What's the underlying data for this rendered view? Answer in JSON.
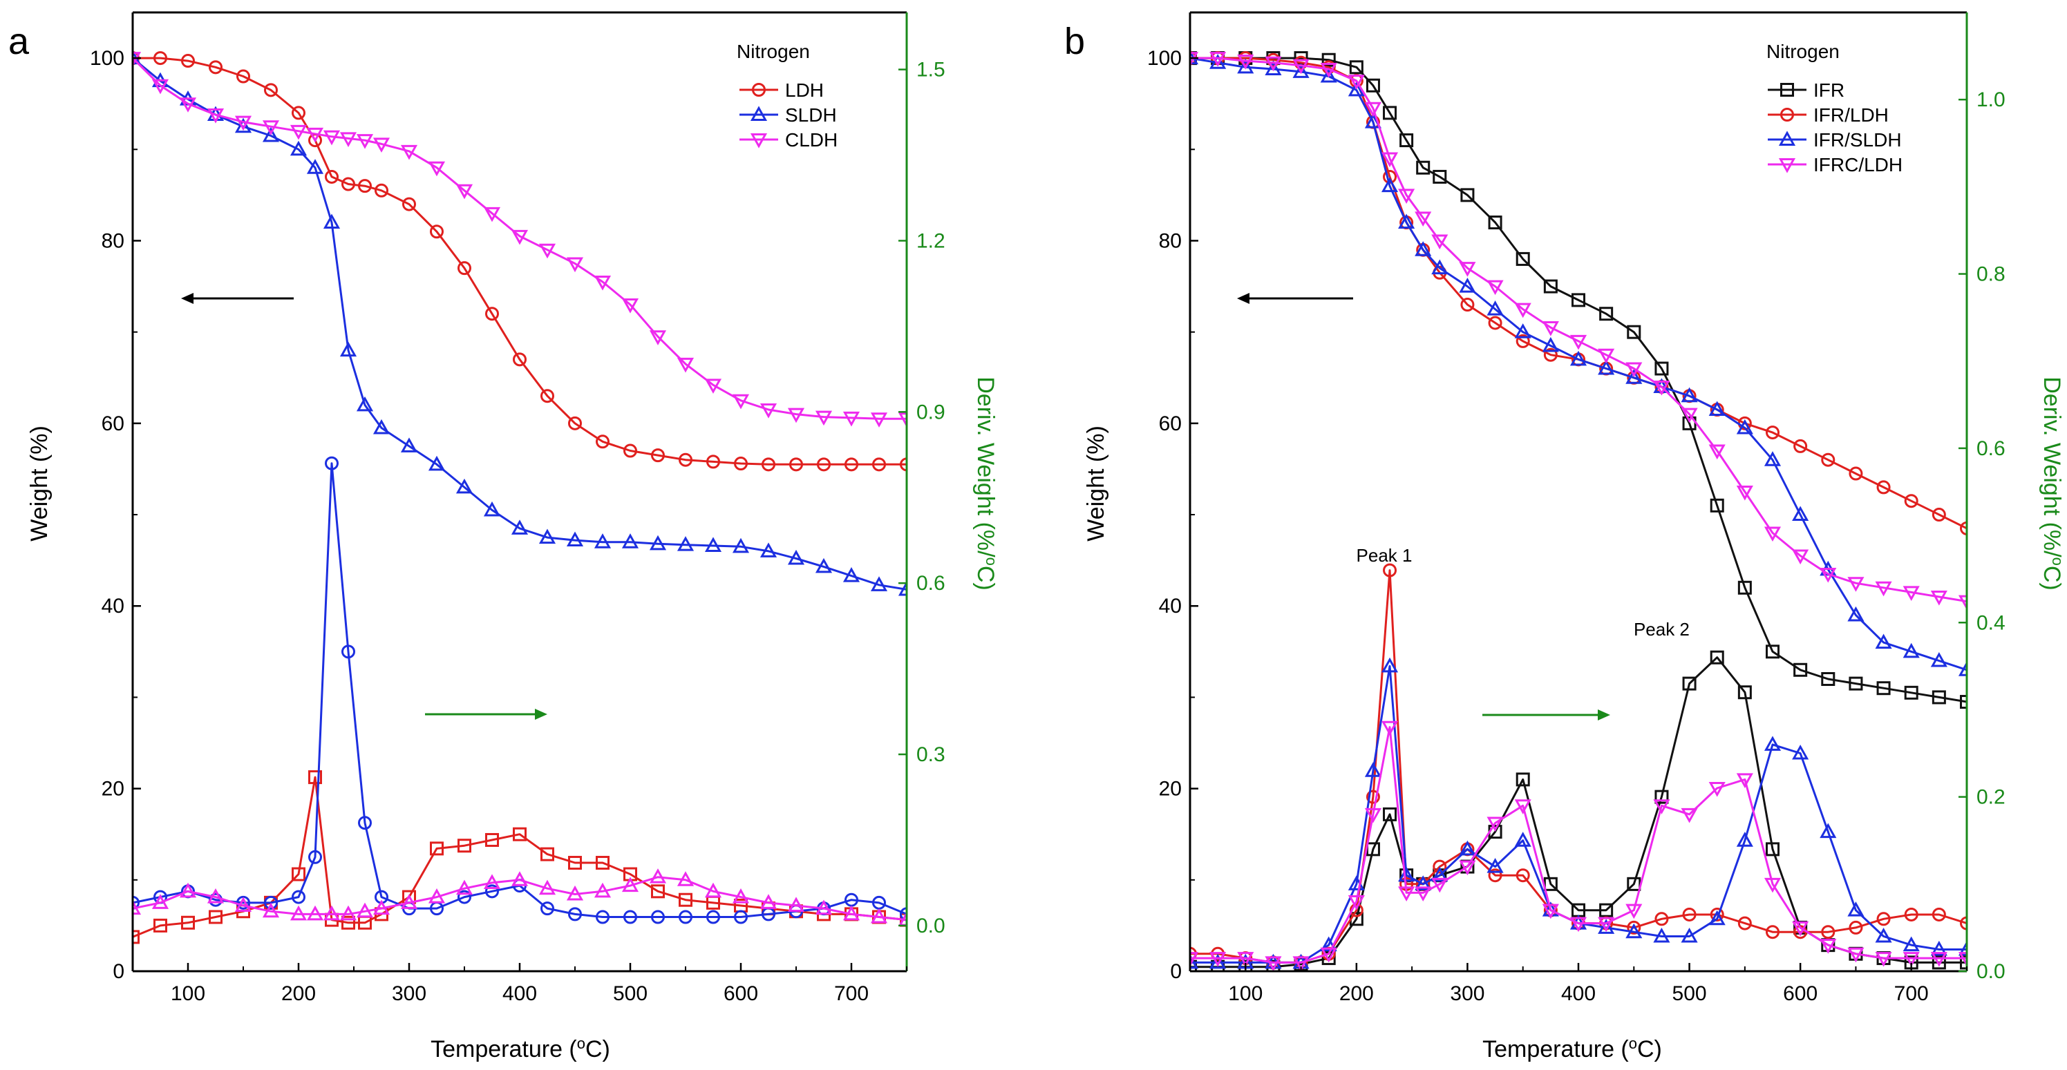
{
  "colors": {
    "LDH": "#e0201e",
    "SLDH": "#1c2fe0",
    "CLDH": "#ee2aee",
    "IFR": "#111111",
    "IFR/LDH": "#e0201e",
    "IFR/SLDH": "#1c2fe0",
    "IFRC/LDH": "#ee2aee",
    "deriv_axis": "#1a8a1a"
  },
  "chart_data": [
    {
      "panel": "a",
      "type": "line",
      "legend_title": "Nitrogen",
      "legend_position": "top-right",
      "xlabel": "Temperature (°C)",
      "ylabel": "Weight (%)",
      "y2label": "Deriv. Weight (%/°C)",
      "xlim": [
        50,
        750
      ],
      "ylim": [
        0,
        105
      ],
      "y2lim": [
        -0.08,
        1.6
      ],
      "xticks": [
        100,
        200,
        300,
        400,
        500,
        600,
        700
      ],
      "yticks": [
        0,
        20,
        40,
        60,
        80,
        100
      ],
      "y2ticks": [
        0.0,
        0.3,
        0.6,
        0.9,
        1.2,
        1.5
      ],
      "y2tick_labels": [
        "0.0",
        "0.3",
        "0.6",
        "0.9",
        "1.2",
        "1.5"
      ],
      "x": [
        50,
        75,
        100,
        125,
        150,
        175,
        200,
        215,
        230,
        245,
        260,
        275,
        300,
        325,
        350,
        375,
        400,
        425,
        450,
        475,
        500,
        525,
        550,
        575,
        600,
        625,
        650,
        675,
        700,
        725,
        750
      ],
      "series": [
        {
          "name": "LDH",
          "axis": "weight",
          "marker": "circle",
          "values": [
            100,
            100,
            99.7,
            99,
            98,
            96.5,
            94,
            91,
            87,
            86.2,
            86,
            85.5,
            84,
            81,
            77,
            72,
            67,
            63,
            60,
            58,
            57,
            56.5,
            56,
            55.8,
            55.6,
            55.5,
            55.5,
            55.5,
            55.5,
            55.5,
            55.5
          ]
        },
        {
          "name": "SLDH",
          "axis": "weight",
          "marker": "triangle-up",
          "values": [
            100,
            97.5,
            95.5,
            93.8,
            92.5,
            91.5,
            90,
            88,
            82,
            68,
            62,
            59.5,
            57.5,
            55.5,
            53,
            50.5,
            48.5,
            47.5,
            47.2,
            47,
            47,
            46.8,
            46.7,
            46.6,
            46.5,
            46,
            45.2,
            44.3,
            43.3,
            42.3,
            41.8
          ]
        },
        {
          "name": "CLDH",
          "axis": "weight",
          "marker": "triangle-down",
          "values": [
            100,
            97,
            95,
            93.8,
            93,
            92.5,
            92,
            91.7,
            91.4,
            91.2,
            91,
            90.6,
            89.8,
            88,
            85.5,
            83,
            80.5,
            79,
            77.5,
            75.5,
            73,
            69.5,
            66.5,
            64.2,
            62.5,
            61.5,
            61,
            60.7,
            60.6,
            60.5,
            60.5
          ]
        },
        {
          "name": "LDH-deriv",
          "axis": "deriv",
          "marker": "square",
          "color_key": "LDH",
          "values": [
            -0.02,
            0.0,
            0.005,
            0.015,
            0.025,
            0.04,
            0.09,
            0.26,
            0.01,
            0.005,
            0.005,
            0.02,
            0.05,
            0.135,
            0.14,
            0.15,
            0.16,
            0.125,
            0.11,
            0.11,
            0.09,
            0.06,
            0.045,
            0.04,
            0.035,
            0.03,
            0.025,
            0.02,
            0.02,
            0.015,
            0.01
          ]
        },
        {
          "name": "SLDH-deriv",
          "axis": "deriv",
          "marker": "circle",
          "color_key": "SLDH",
          "values": [
            0.04,
            0.05,
            0.06,
            0.045,
            0.04,
            0.04,
            0.05,
            0.12,
            0.81,
            0.48,
            0.18,
            0.05,
            0.03,
            0.03,
            0.05,
            0.06,
            0.07,
            0.03,
            0.02,
            0.015,
            0.015,
            0.015,
            0.015,
            0.015,
            0.015,
            0.02,
            0.025,
            0.03,
            0.045,
            0.04,
            0.02
          ]
        },
        {
          "name": "CLDH-deriv",
          "axis": "deriv",
          "marker": "triangle-up",
          "color_key": "CLDH",
          "values": [
            0.03,
            0.04,
            0.06,
            0.05,
            0.035,
            0.025,
            0.02,
            0.02,
            0.02,
            0.02,
            0.025,
            0.03,
            0.04,
            0.05,
            0.065,
            0.075,
            0.08,
            0.065,
            0.055,
            0.06,
            0.07,
            0.085,
            0.08,
            0.06,
            0.05,
            0.04,
            0.035,
            0.03,
            0.02,
            0.015,
            0.01
          ]
        }
      ],
      "legend": [
        "LDH",
        "SLDH",
        "CLDH"
      ]
    },
    {
      "panel": "b",
      "type": "line",
      "legend_title": "Nitrogen",
      "legend_position": "top-right",
      "xlabel": "Temperature (°C)",
      "ylabel": "Weight (%)",
      "y2label": "Deriv. Weight (%/°C)",
      "xlim": [
        50,
        750
      ],
      "ylim": [
        0,
        105
      ],
      "y2lim": [
        0,
        1.1
      ],
      "xticks": [
        100,
        200,
        300,
        400,
        500,
        600,
        700
      ],
      "yticks": [
        0,
        20,
        40,
        60,
        80,
        100
      ],
      "y2ticks": [
        0.0,
        0.2,
        0.4,
        0.6,
        0.8,
        1.0
      ],
      "y2tick_labels": [
        "0.0",
        "0.2",
        "0.4",
        "0.6",
        "0.8",
        "1.0"
      ],
      "annotations": [
        {
          "text": "Peak 1",
          "x": 225,
          "y2": 0.47
        },
        {
          "text": "Peak 2",
          "x": 475,
          "y2": 0.385
        }
      ],
      "x": [
        50,
        75,
        100,
        125,
        150,
        175,
        200,
        215,
        230,
        245,
        260,
        275,
        300,
        325,
        350,
        375,
        400,
        425,
        450,
        475,
        500,
        525,
        550,
        575,
        600,
        625,
        650,
        675,
        700,
        725,
        750
      ],
      "series": [
        {
          "name": "IFR",
          "axis": "weight",
          "marker": "square",
          "values": [
            100,
            100,
            100,
            100,
            100,
            99.8,
            99,
            97,
            94,
            91,
            88,
            87,
            85,
            82,
            78,
            75,
            73.5,
            72,
            70,
            66,
            60,
            51,
            42,
            35,
            33,
            32,
            31.5,
            31,
            30.5,
            30,
            29.5
          ]
        },
        {
          "name": "IFR/LDH",
          "axis": "weight",
          "marker": "circle",
          "values": [
            100,
            100,
            100,
            99.8,
            99.5,
            99,
            97.5,
            93,
            87,
            82,
            79,
            76.5,
            73,
            71,
            69,
            67.5,
            67,
            66,
            65,
            64,
            63,
            61.5,
            60,
            59,
            57.5,
            56,
            54.5,
            53,
            51.5,
            50,
            48.5
          ]
        },
        {
          "name": "IFR/SLDH",
          "axis": "weight",
          "marker": "triangle-up",
          "values": [
            100,
            99.5,
            99,
            98.8,
            98.5,
            98,
            96.5,
            93,
            86,
            82,
            79,
            77,
            75,
            72.5,
            70,
            68.5,
            67,
            66,
            65,
            64,
            63,
            61.5,
            59.5,
            56,
            50,
            44,
            39,
            36,
            35,
            34,
            33
          ]
        },
        {
          "name": "IFRC/LDH",
          "axis": "weight",
          "marker": "triangle-down",
          "values": [
            100,
            100,
            99.7,
            99.5,
            99.2,
            98.8,
            97.5,
            94.5,
            89,
            85,
            82.5,
            80,
            77,
            75,
            72.5,
            70.5,
            69,
            67.5,
            66,
            64,
            61,
            57,
            52.5,
            48,
            45.5,
            43.5,
            42.5,
            42,
            41.5,
            41,
            40.5
          ]
        },
        {
          "name": "IFR-deriv",
          "axis": "deriv",
          "marker": "square",
          "color_key": "IFR",
          "values": [
            0.005,
            0.005,
            0.005,
            0.005,
            0.008,
            0.015,
            0.06,
            0.14,
            0.18,
            0.11,
            0.1,
            0.11,
            0.12,
            0.16,
            0.22,
            0.1,
            0.07,
            0.07,
            0.1,
            0.2,
            0.33,
            0.36,
            0.32,
            0.14,
            0.05,
            0.03,
            0.02,
            0.015,
            0.01,
            0.01,
            0.01
          ]
        },
        {
          "name": "IFR/LDH-deriv",
          "axis": "deriv",
          "marker": "circle",
          "color_key": "IFR/LDH",
          "values": [
            0.02,
            0.02,
            0.015,
            0.01,
            0.01,
            0.02,
            0.07,
            0.2,
            0.46,
            0.1,
            0.1,
            0.12,
            0.14,
            0.11,
            0.11,
            0.07,
            0.055,
            0.055,
            0.05,
            0.06,
            0.065,
            0.065,
            0.055,
            0.045,
            0.045,
            0.045,
            0.05,
            0.06,
            0.065,
            0.065,
            0.055
          ]
        },
        {
          "name": "IFR/SLDH-deriv",
          "axis": "deriv",
          "marker": "triangle-up",
          "color_key": "IFR/SLDH",
          "values": [
            0.01,
            0.01,
            0.01,
            0.01,
            0.01,
            0.03,
            0.1,
            0.23,
            0.35,
            0.11,
            0.1,
            0.11,
            0.14,
            0.12,
            0.15,
            0.07,
            0.055,
            0.05,
            0.045,
            0.04,
            0.04,
            0.06,
            0.15,
            0.26,
            0.25,
            0.16,
            0.07,
            0.04,
            0.03,
            0.025,
            0.025
          ]
        },
        {
          "name": "IFRC/LDH-deriv",
          "axis": "deriv",
          "marker": "triangle-down",
          "color_key": "IFRC/LDH",
          "values": [
            0.015,
            0.015,
            0.015,
            0.01,
            0.01,
            0.02,
            0.08,
            0.18,
            0.28,
            0.09,
            0.09,
            0.1,
            0.12,
            0.17,
            0.19,
            0.07,
            0.055,
            0.055,
            0.07,
            0.19,
            0.18,
            0.21,
            0.22,
            0.1,
            0.05,
            0.03,
            0.02,
            0.015,
            0.015,
            0.015,
            0.015
          ]
        }
      ],
      "legend": [
        "IFR",
        "IFR/LDH",
        "IFR/SLDH",
        "IFRC/LDH"
      ]
    }
  ]
}
